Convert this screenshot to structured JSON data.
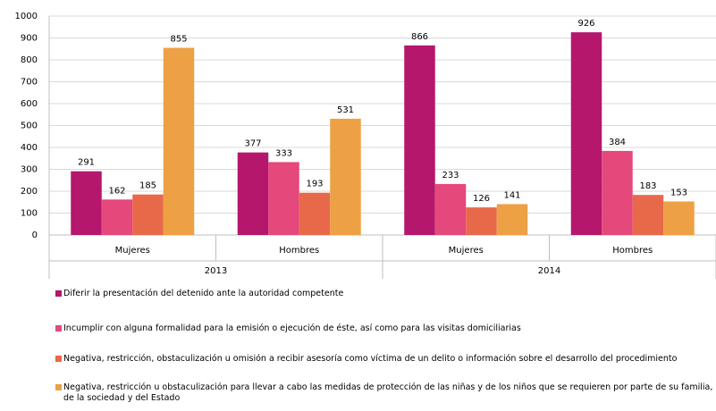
{
  "chart_data": {
    "type": "bar",
    "categories": [
      "Mujeres",
      "Hombres",
      "Mujeres",
      "Hombres"
    ],
    "years": [
      "2013",
      "2014"
    ],
    "series": [
      {
        "name": "Diferir la presentación del detenido ante la autoridad competente",
        "color": "#b5176c",
        "values": [
          291,
          377,
          866,
          926
        ]
      },
      {
        "name": "Incumplir con alguna formalidad para la emisión o ejecución de éste, así como para las visitas domiciliarias",
        "color": "#e5487b",
        "values": [
          162,
          333,
          233,
          384
        ]
      },
      {
        "name": "Negativa, restricción, obstaculización u omisión a recibir asesoría como víctima de un delito o información sobre el desarrollo del procedimiento",
        "color": "#e8694a",
        "values": [
          185,
          193,
          126,
          183
        ]
      },
      {
        "name": "Negativa, restricción u obstaculización para llevar a cabo las medidas de protección de las niñas y de los niños que se requieren por parte de su familia, de la sociedad y del Estado",
        "color": "#eda044",
        "values": [
          855,
          531,
          141,
          153
        ]
      }
    ],
    "ylim": [
      0,
      1000
    ],
    "yticks": [
      0,
      100,
      200,
      300,
      400,
      500,
      600,
      700,
      800,
      900,
      1000
    ],
    "grid": true
  }
}
